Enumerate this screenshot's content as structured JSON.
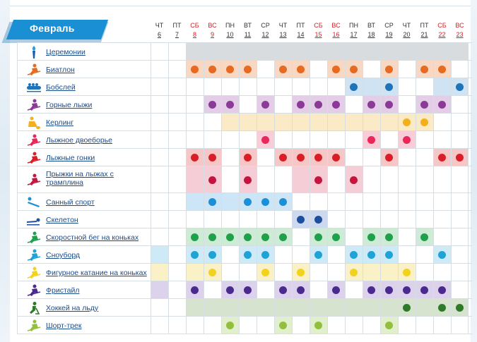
{
  "month": "Февраль",
  "days": [
    {
      "wd": "ЧТ",
      "d": "6",
      "weekend": false
    },
    {
      "wd": "ПТ",
      "d": "7",
      "weekend": false
    },
    {
      "wd": "СБ",
      "d": "8",
      "weekend": true
    },
    {
      "wd": "ВС",
      "d": "9",
      "weekend": true
    },
    {
      "wd": "ПН",
      "d": "10",
      "weekend": false
    },
    {
      "wd": "ВТ",
      "d": "11",
      "weekend": false
    },
    {
      "wd": "СР",
      "d": "12",
      "weekend": false
    },
    {
      "wd": "ЧТ",
      "d": "13",
      "weekend": false
    },
    {
      "wd": "ПТ",
      "d": "14",
      "weekend": false
    },
    {
      "wd": "СБ",
      "d": "15",
      "weekend": true
    },
    {
      "wd": "ВС",
      "d": "16",
      "weekend": true
    },
    {
      "wd": "ПН",
      "d": "17",
      "weekend": false
    },
    {
      "wd": "ВТ",
      "d": "18",
      "weekend": false
    },
    {
      "wd": "СР",
      "d": "19",
      "weekend": false
    },
    {
      "wd": "ЧТ",
      "d": "20",
      "weekend": false
    },
    {
      "wd": "ПТ",
      "d": "21",
      "weekend": false
    },
    {
      "wd": "СБ",
      "d": "22",
      "weekend": true
    },
    {
      "wd": "ВС",
      "d": "23",
      "weekend": true
    }
  ],
  "sports": [
    {
      "name": "Церемонии",
      "color": "#999999",
      "bg": "#d9dcdf",
      "icon": "torch-icon",
      "shade": [
        2,
        3,
        4,
        5,
        6,
        7,
        8,
        9,
        10,
        11,
        12,
        13,
        14,
        15,
        16,
        17
      ],
      "dots": []
    },
    {
      "name": "Биатлон",
      "color": "#e66a1f",
      "bg": "#f8d8c2",
      "icon": "biathlon-icon",
      "shade": [
        2,
        3,
        4,
        5,
        7,
        8,
        10,
        11,
        13,
        15,
        16
      ],
      "dots": [
        2,
        3,
        4,
        5,
        7,
        8,
        10,
        11,
        13,
        15,
        16
      ]
    },
    {
      "name": "Бобслей",
      "color": "#1f73b8",
      "bg": "#cfe3f3",
      "icon": "bobsleigh-icon",
      "shade": [
        11,
        12,
        13,
        16,
        17
      ],
      "dots": [
        11,
        13,
        17
      ]
    },
    {
      "name": "Горные лыжи",
      "color": "#8b3a98",
      "bg": "#e3cde7",
      "icon": "alpine-skiing-icon",
      "shade": [
        3,
        4,
        6,
        8,
        9,
        10,
        12,
        13,
        15,
        16
      ],
      "dots": [
        3,
        4,
        6,
        8,
        9,
        10,
        12,
        13,
        15,
        16
      ]
    },
    {
      "name": "Керлинг",
      "color": "#f2b11c",
      "bg": "#fbeac6",
      "icon": "curling-icon",
      "shade": [
        4,
        5,
        6,
        7,
        8,
        9,
        10,
        11,
        12,
        13,
        14,
        15
      ],
      "dots": [
        14,
        15
      ]
    },
    {
      "name": "Лыжное двоеборье",
      "color": "#e8275a",
      "bg": "#f9cdd8",
      "icon": "nordic-combined-icon",
      "shade": [
        6,
        12,
        14
      ],
      "dots": [
        6,
        12,
        14
      ]
    },
    {
      "name": "Лыжные гонки",
      "color": "#d81e26",
      "bg": "#f6c7c7",
      "icon": "cross-country-icon",
      "shade": [
        2,
        3,
        5,
        7,
        8,
        9,
        10,
        13,
        16,
        17
      ],
      "dots": [
        2,
        3,
        5,
        7,
        8,
        9,
        10,
        13,
        16,
        17
      ]
    },
    {
      "name": "Прыжки на лыжах с трамплина",
      "color": "#c4153f",
      "bg": "#f4cdd6",
      "icon": "ski-jumping-icon",
      "shade": [
        2,
        3,
        5,
        8,
        9,
        11
      ],
      "dots": [
        3,
        5,
        9,
        11
      ]
    },
    {
      "name": "Санный спорт",
      "color": "#1a90d8",
      "bg": "#cde6f7",
      "icon": "luge-icon",
      "shade": [
        2,
        3,
        4,
        5,
        6,
        7
      ],
      "dots": [
        3,
        5,
        6,
        7
      ]
    },
    {
      "name": "Скелетон",
      "color": "#1f4e9c",
      "bg": "#cdd9ee",
      "icon": "skeleton-icon",
      "shade": [
        8,
        9
      ],
      "dots": [
        8,
        9
      ]
    },
    {
      "name": "Скоростной бег на коньках",
      "color": "#1fa04a",
      "bg": "#cdebd5",
      "icon": "speed-skating-icon",
      "shade": [
        2,
        3,
        4,
        5,
        6,
        7,
        9,
        10,
        12,
        13,
        15
      ],
      "dots": [
        2,
        3,
        4,
        5,
        6,
        7,
        9,
        10,
        12,
        13,
        15
      ]
    },
    {
      "name": "Сноуборд",
      "color": "#1fa3d6",
      "bg": "#cdeaf6",
      "icon": "snowboard-icon",
      "shade": [
        0,
        2,
        3,
        5,
        6,
        9,
        11,
        12,
        13,
        16
      ],
      "dots": [
        2,
        3,
        5,
        6,
        9,
        11,
        12,
        13,
        16
      ]
    },
    {
      "name": "Фигурное катание на коньках",
      "color": "#f2d21c",
      "bg": "#fbf1c6",
      "icon": "figure-skating-icon",
      "shade": [
        0,
        2,
        3,
        6,
        8,
        11,
        12,
        13,
        14
      ],
      "dots": [
        3,
        6,
        8,
        11,
        14
      ]
    },
    {
      "name": "Фристайл",
      "color": "#4b2a8f",
      "bg": "#dcd2ec",
      "icon": "freestyle-icon",
      "shade": [
        0,
        2,
        4,
        5,
        7,
        8,
        10,
        12,
        13,
        14,
        15,
        16
      ],
      "dots": [
        2,
        4,
        5,
        7,
        8,
        10,
        12,
        13,
        14,
        15,
        16
      ]
    },
    {
      "name": "Хоккей на льду",
      "color": "#2f7a2a",
      "bg": "#d5e3cf",
      "icon": "ice-hockey-icon",
      "shade": [
        2,
        3,
        4,
        5,
        6,
        7,
        8,
        9,
        10,
        11,
        12,
        13,
        14,
        15,
        16,
        17
      ],
      "dots": [
        14,
        16,
        17
      ]
    },
    {
      "name": "Шорт-трек",
      "color": "#92c03e",
      "bg": "#e2efcc",
      "icon": "short-track-icon",
      "shade": [
        4,
        7,
        9,
        13
      ],
      "dots": [
        4,
        7,
        9,
        13
      ]
    }
  ]
}
